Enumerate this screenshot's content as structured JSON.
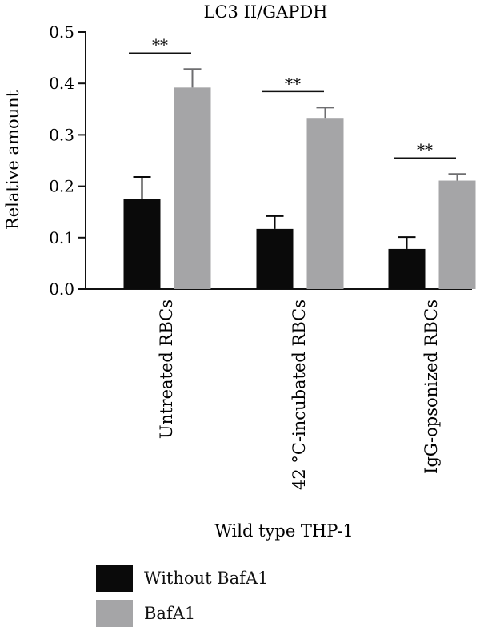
{
  "chart_data": {
    "type": "bar",
    "title": "LC3 II/GAPDH",
    "ylabel": "Relative amount",
    "xlabel": "Wild type THP-1",
    "ylim": [
      0,
      0.5
    ],
    "yticks": [
      "0.0",
      "0.1",
      "0.2",
      "0.3",
      "0.4",
      "0.5"
    ],
    "categories": [
      "Untreated RBCs",
      "42 °C-incubated RBCs",
      "IgG-opsonized RBCs"
    ],
    "series": [
      {
        "name": "Without BafA1",
        "color": "#0a0a0a",
        "values": [
          0.175,
          0.117,
          0.078
        ],
        "errors": [
          0.043,
          0.025,
          0.023
        ]
      },
      {
        "name": "BafA1",
        "color": "#a5a5a7",
        "values": [
          0.392,
          0.333,
          0.211
        ],
        "errors": [
          0.036,
          0.02,
          0.013
        ]
      }
    ],
    "significance": [
      "**",
      "**",
      "**"
    ],
    "legend_position": "bottom"
  }
}
